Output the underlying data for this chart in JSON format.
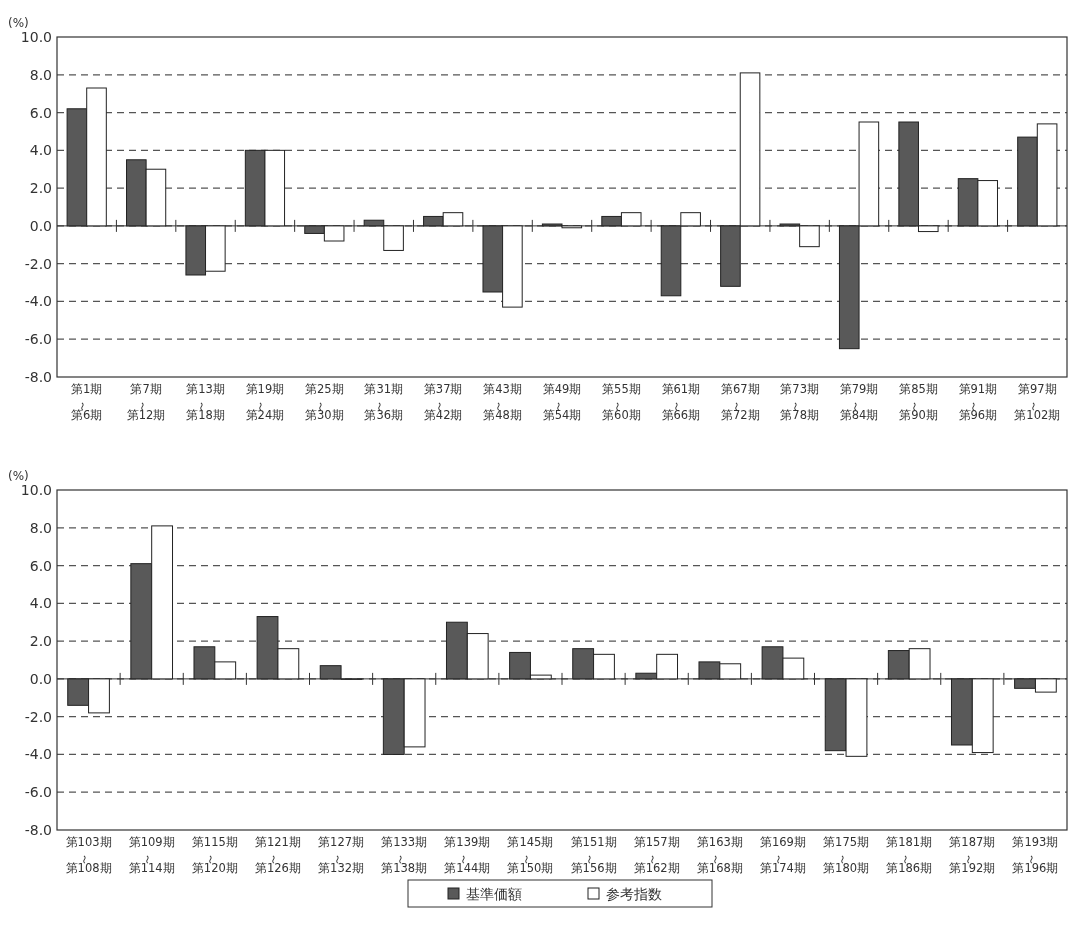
{
  "chart_data": [
    {
      "type": "bar",
      "ylabel": "(%)",
      "categories": [
        "第1期〜第6期",
        "第7期〜第12期",
        "第13期〜第18期",
        "第19期〜第24期",
        "第25期〜第30期",
        "第31期〜第36期",
        "第37期〜第42期",
        "第43期〜第48期",
        "第49期〜第54期",
        "第55期〜第60期",
        "第61期〜第66期",
        "第67期〜第72期",
        "第73期〜第78期",
        "第79期〜第84期",
        "第85期〜第90期",
        "第91期〜第96期",
        "第97期〜第102期"
      ],
      "series": [
        {
          "color": "#595959",
          "values": [
            6.2,
            3.5,
            -2.6,
            4.0,
            -0.4,
            0.3,
            0.5,
            -3.5,
            0.1,
            0.5,
            -3.7,
            -3.2,
            0.1,
            -6.5,
            5.5,
            2.5,
            4.7
          ]
        },
        {
          "color": "#ffffff",
          "values": [
            7.3,
            3.0,
            -2.4,
            4.0,
            -0.8,
            -1.3,
            0.7,
            -4.3,
            -0.1,
            0.7,
            0.7,
            8.1,
            -1.1,
            5.5,
            -0.3,
            2.4,
            5.4
          ]
        }
      ],
      "ylim": [
        -8,
        10
      ],
      "yticks": [
        {
          "value": 10,
          "label": "10.0"
        },
        {
          "value": 8,
          "label": "8.0"
        },
        {
          "value": 6,
          "label": "6.0"
        },
        {
          "value": 4,
          "label": "4.0"
        },
        {
          "value": 2,
          "label": "2.0"
        },
        {
          "value": 0,
          "label": "0.0"
        },
        {
          "value": -2,
          "label": "-2.0"
        },
        {
          "value": -4,
          "label": "-4.0"
        },
        {
          "value": -6,
          "label": "-6.0"
        },
        {
          "value": -8,
          "label": "-8.0"
        }
      ],
      "grid": "y",
      "line_style": "dashed"
    },
    {
      "type": "bar",
      "ylabel": "(%)",
      "categories": [
        "第103期〜第108期",
        "第109期〜第114期",
        "第115期〜第120期",
        "第121期〜第126期",
        "第127期〜第132期",
        "第133期〜第138期",
        "第139期〜第144期",
        "第145期〜第150期",
        "第151期〜第156期",
        "第157期〜第162期",
        "第163期〜第168期",
        "第169期〜第174期",
        "第175期〜第180期",
        "第181期〜第186期",
        "第187期〜第192期",
        "第193期〜第196期"
      ],
      "series": [
        {
          "name": "基準価額",
          "color": "#595959",
          "values": [
            -1.4,
            6.1,
            1.7,
            3.3,
            0.7,
            -4.0,
            3.0,
            1.4,
            1.6,
            0.3,
            0.9,
            1.7,
            -3.8,
            1.5,
            -3.5,
            -0.5
          ]
        },
        {
          "name": "参考指数",
          "color": "#ffffff",
          "values": [
            -1.8,
            8.1,
            0.9,
            1.6,
            0.0,
            -3.6,
            2.4,
            0.2,
            1.3,
            1.3,
            0.8,
            1.1,
            -4.1,
            1.6,
            -3.9,
            -0.7
          ]
        }
      ],
      "ylim": [
        -8,
        10
      ],
      "yticks": [
        {
          "value": 10,
          "label": "10.0"
        },
        {
          "value": 8,
          "label": "8.0"
        },
        {
          "value": 6,
          "label": "6.0"
        },
        {
          "value": 4,
          "label": "4.0"
        },
        {
          "value": 2,
          "label": "2.0"
        },
        {
          "value": 0,
          "label": "0.0"
        },
        {
          "value": -2,
          "label": "-2.0"
        },
        {
          "value": -4,
          "label": "-4.0"
        },
        {
          "value": -6,
          "label": "-6.0"
        },
        {
          "value": -8,
          "label": "-8.0"
        }
      ],
      "grid": "y",
      "line_style": "dashed",
      "legend": "bottom"
    }
  ]
}
